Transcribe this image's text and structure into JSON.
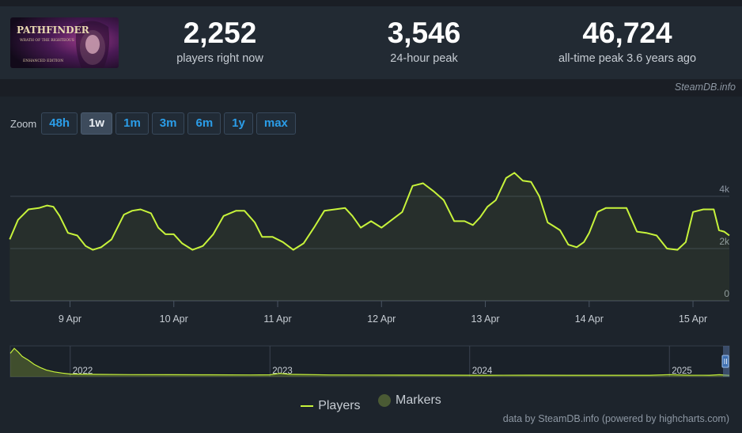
{
  "header": {
    "logo_title": "PATHFINDER",
    "logo_subtitle": "WRATH OF THE RIGHTEOUS",
    "logo_edition": "ENHANCED EDITION",
    "stats": [
      {
        "value": "2,252",
        "label": "players right now"
      },
      {
        "value": "3,546",
        "label": "24-hour peak"
      },
      {
        "value": "46,724",
        "label": "all-time peak 3.6 years ago"
      }
    ]
  },
  "source_credit": "SteamDB.info",
  "zoom": {
    "label": "Zoom",
    "options": [
      "48h",
      "1w",
      "1m",
      "3m",
      "6m",
      "1y",
      "max"
    ],
    "active": "1w"
  },
  "chart_data": {
    "type": "line",
    "y_tick_labels": [
      "0",
      "2k",
      "4k"
    ],
    "ylim": [
      0,
      6000
    ],
    "x_tick_labels": [
      "9 Apr",
      "10 Apr",
      "11 Apr",
      "12 Apr",
      "13 Apr",
      "14 Apr",
      "15 Apr"
    ],
    "x_days": [
      8.425,
      15.35
    ],
    "grid": true,
    "series": [
      {
        "name": "Players",
        "color": "#c7f33b",
        "x": [
          8.42,
          8.5,
          8.6,
          8.7,
          8.78,
          8.84,
          8.9,
          8.98,
          9.07,
          9.15,
          9.22,
          9.3,
          9.4,
          9.52,
          9.6,
          9.68,
          9.78,
          9.85,
          9.92,
          10.0,
          10.08,
          10.18,
          10.28,
          10.38,
          10.48,
          10.6,
          10.68,
          10.78,
          10.85,
          10.95,
          11.05,
          11.15,
          11.25,
          11.35,
          11.45,
          11.55,
          11.65,
          11.72,
          11.8,
          11.9,
          12.0,
          12.1,
          12.2,
          12.3,
          12.4,
          12.5,
          12.6,
          12.7,
          12.8,
          12.88,
          12.95,
          13.02,
          13.1,
          13.2,
          13.28,
          13.36,
          13.44,
          13.52,
          13.6,
          13.66,
          13.72,
          13.8,
          13.88,
          13.95,
          14.0,
          14.08,
          14.16,
          14.26,
          14.36,
          14.46,
          14.55,
          14.65,
          14.75,
          14.85,
          14.93,
          15.0,
          15.1,
          15.2,
          15.25,
          15.3,
          15.35
        ],
        "y": [
          2350,
          3100,
          3500,
          3550,
          3650,
          3600,
          3250,
          2600,
          2500,
          2100,
          1950,
          2050,
          2350,
          3300,
          3450,
          3500,
          3350,
          2800,
          2550,
          2550,
          2200,
          1950,
          2100,
          2550,
          3250,
          3450,
          3450,
          3000,
          2450,
          2450,
          2250,
          1950,
          2200,
          2800,
          3450,
          3500,
          3550,
          3250,
          2800,
          3050,
          2800,
          3100,
          3400,
          4400,
          4500,
          4200,
          3850,
          3050,
          3050,
          2900,
          3200,
          3600,
          3850,
          4700,
          4900,
          4600,
          4550,
          4000,
          3000,
          2850,
          2700,
          2150,
          2050,
          2250,
          2600,
          3400,
          3550,
          3550,
          3550,
          2650,
          2600,
          2500,
          2000,
          1950,
          2250,
          3400,
          3500,
          3500,
          2700,
          2650,
          2500
        ]
      }
    ],
    "navigator": {
      "year_labels": [
        "2022",
        "2023",
        "2024",
        "2025"
      ],
      "x_years": [
        2021.7,
        2025.3
      ],
      "ylim": [
        0,
        50000
      ],
      "x": [
        2021.7,
        2021.72,
        2021.74,
        2021.76,
        2021.79,
        2021.82,
        2021.85,
        2021.88,
        2021.92,
        2021.96,
        2022.0,
        2022.1,
        2022.3,
        2022.5,
        2022.7,
        2022.9,
        2023.0,
        2023.05,
        2023.1,
        2023.3,
        2023.5,
        2023.7,
        2023.9,
        2024.1,
        2024.3,
        2024.5,
        2024.7,
        2024.9,
        2025.0,
        2025.1,
        2025.2,
        2025.25,
        2025.3
      ],
      "y": [
        38000,
        46000,
        40000,
        33000,
        27000,
        20000,
        15000,
        11000,
        8000,
        6000,
        4500,
        4000,
        3500,
        3300,
        3200,
        3000,
        3200,
        5500,
        4000,
        3000,
        2800,
        2700,
        2600,
        2500,
        2600,
        2500,
        2400,
        2400,
        3500,
        2600,
        2500,
        3300,
        2300
      ]
    }
  },
  "legend": [
    {
      "label": "Players",
      "type": "line"
    },
    {
      "label": "Markers",
      "type": "dot"
    }
  ],
  "bottom_credit": "data by SteamDB.info (powered by highcharts.com)"
}
